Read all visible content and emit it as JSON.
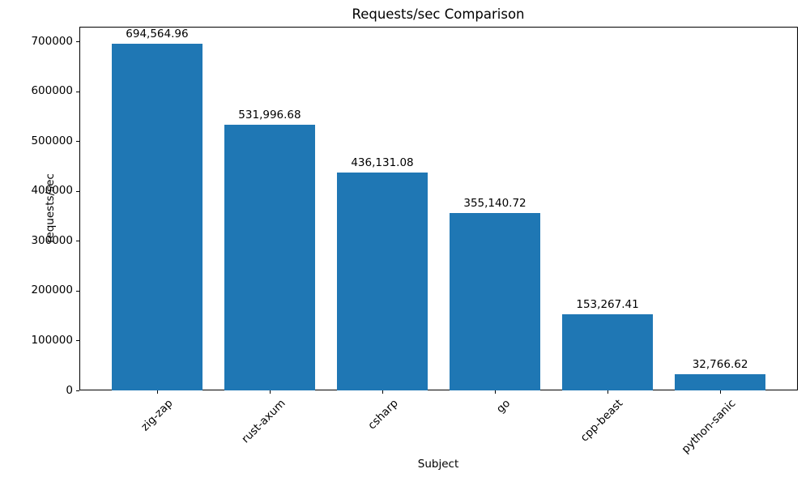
{
  "chart_data": {
    "type": "bar",
    "title": "Requests/sec Comparison",
    "xlabel": "Subject",
    "ylabel": "requests/sec",
    "categories": [
      "zig-zap",
      "rust-axum",
      "csharp",
      "go",
      "cpp-beast",
      "python-sanic"
    ],
    "values": [
      694564.96,
      531996.68,
      436131.08,
      355140.72,
      153267.41,
      32766.62
    ],
    "bar_value_labels": [
      "694,564.96",
      "531,996.68",
      "436,131.08",
      "355,140.72",
      "153,267.41",
      "32,766.62"
    ],
    "ylim": [
      0,
      729293
    ],
    "yticks": [
      0,
      100000,
      200000,
      300000,
      400000,
      500000,
      600000,
      700000
    ],
    "ytick_labels": [
      "0",
      "100000",
      "200000",
      "300000",
      "400000",
      "500000",
      "600000",
      "700000"
    ],
    "bar_color": "#1f77b4",
    "axis_color": "#000000",
    "text_color": "#000000",
    "grid": false,
    "legend_position": "none",
    "xtick_rotation_degrees": 45
  }
}
